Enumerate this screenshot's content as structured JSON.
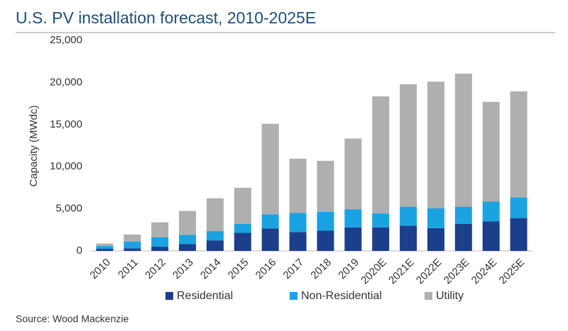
{
  "chart_data": {
    "type": "stacked_bar",
    "title": "U.S. PV installation forecast, 2010-2025E",
    "y_label": "Capacity (MWdc)",
    "source": "Source: Wood Mackenzie",
    "categories": [
      "2010",
      "2011",
      "2012",
      "2013",
      "2014",
      "2015",
      "2016",
      "2017",
      "2018",
      "2019",
      "2020E",
      "2021E",
      "2022E",
      "2023E",
      "2024E",
      "2025E"
    ],
    "series": [
      {
        "name": "Residential",
        "color": "#1c3f8c",
        "values": [
          250,
          300,
          500,
          800,
          1250,
          2150,
          2650,
          2250,
          2400,
          2800,
          2800,
          3000,
          2700,
          3200,
          3500,
          3900
        ]
      },
      {
        "name": "Non-Residential",
        "color": "#1aa3e0",
        "values": [
          330,
          800,
          1100,
          1100,
          1100,
          1050,
          1700,
          2250,
          2250,
          2150,
          1650,
          2250,
          2350,
          2050,
          2350,
          2450
        ]
      },
      {
        "name": "Utility",
        "color": "#afafaf",
        "values": [
          300,
          850,
          1800,
          2850,
          3900,
          4300,
          10750,
          6450,
          6050,
          8400,
          13900,
          14550,
          15050,
          15800,
          11850,
          12600
        ]
      }
    ],
    "ylim": [
      0,
      25000
    ],
    "yticks": [
      0,
      {
        "value": 5000,
        "label": "5,000"
      },
      {
        "value": 10000,
        "label": "10,000"
      },
      {
        "value": 15000,
        "label": "15,000"
      },
      {
        "value": 20000,
        "label": "20,000"
      },
      {
        "value": 25000,
        "label": "25,000"
      }
    ],
    "grid": false,
    "legend": "bottom"
  }
}
